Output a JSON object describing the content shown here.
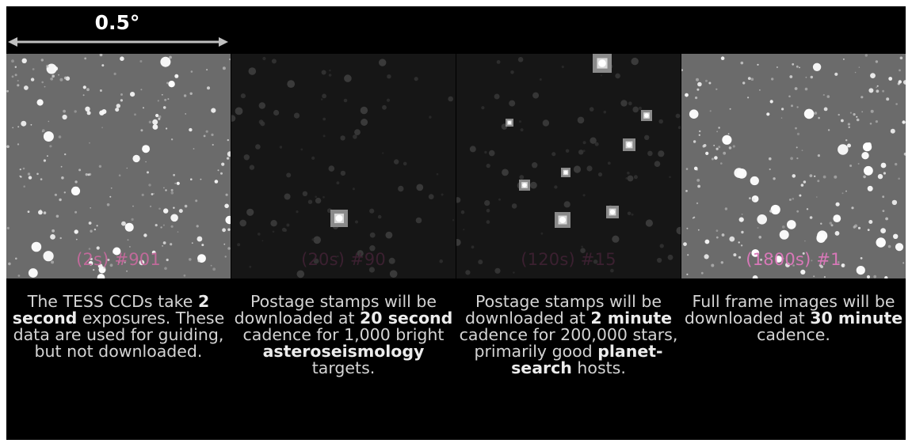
{
  "scale": {
    "label": "0.5°"
  },
  "panels": [
    {
      "cadence_label": "(2s) #901",
      "label_color": "#c06a9a",
      "background": "#6b6b6b",
      "caption": {
        "before": "The TESS CCDs take ",
        "bold": "2 second",
        "after": " exposures. These data are used for guiding, but not downloaded.",
        "bold2": "",
        "after2": ""
      }
    },
    {
      "cadence_label": "(20s) #90",
      "label_color": "#3b2030",
      "background": "#161616",
      "caption": {
        "before": "Postage stamps will be downloaded at ",
        "bold": "20 second",
        "after": " cadence for 1,000 bright ",
        "bold2": "asteroseismology",
        "after2": " targets."
      }
    },
    {
      "cadence_label": "(120s) #15",
      "label_color": "#3b2030",
      "background": "#161616",
      "caption": {
        "before": "Postage stamps will be downloaded at ",
        "bold": "2 minute",
        "after": " cadence for 200,000 stars, primarily good ",
        "bold2": "planet-search",
        "after2": " hosts."
      }
    },
    {
      "cadence_label": "(1800s) #1",
      "label_color": "#d878b8",
      "background": "#6b6b6b",
      "caption": {
        "before": "Full frame images will be downloaded at ",
        "bold": "30 minute",
        "after": " cadence.",
        "bold2": "",
        "after2": ""
      }
    }
  ]
}
